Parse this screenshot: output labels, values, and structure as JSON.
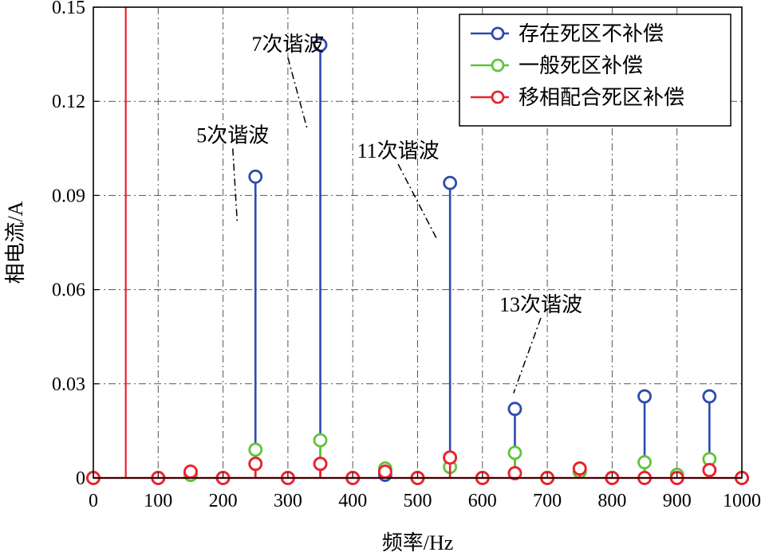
{
  "chart_data": {
    "type": "stem",
    "xlabel": "频率/Hz",
    "ylabel": "相电流/A",
    "xlim": [
      0,
      1000
    ],
    "ylim": [
      0,
      0.15
    ],
    "x_ticks": [
      0,
      100,
      200,
      300,
      400,
      500,
      600,
      700,
      800,
      900,
      1000
    ],
    "y_ticks": [
      0,
      0.03,
      0.06,
      0.09,
      0.12,
      0.15
    ],
    "y_tick_labels": [
      "0",
      "0.03",
      "0.06",
      "0.09",
      "0.12",
      "0.15"
    ],
    "grid": true,
    "grid_style": "dash-dot",
    "legend_position": "top-right",
    "series": [
      {
        "name": "存在死区不补偿",
        "color": "#2e49b0",
        "points": [
          {
            "x": 0,
            "y": 0
          },
          {
            "x": 100,
            "y": 0
          },
          {
            "x": 150,
            "y": 0.001
          },
          {
            "x": 200,
            "y": 0
          },
          {
            "x": 250,
            "y": 0.096
          },
          {
            "x": 300,
            "y": 0
          },
          {
            "x": 350,
            "y": 0.138
          },
          {
            "x": 400,
            "y": 0
          },
          {
            "x": 450,
            "y": 0.001
          },
          {
            "x": 500,
            "y": 0
          },
          {
            "x": 550,
            "y": 0.094
          },
          {
            "x": 600,
            "y": 0
          },
          {
            "x": 650,
            "y": 0.022
          },
          {
            "x": 700,
            "y": 0
          },
          {
            "x": 750,
            "y": 0.002
          },
          {
            "x": 800,
            "y": 0
          },
          {
            "x": 850,
            "y": 0.026
          },
          {
            "x": 900,
            "y": 0
          },
          {
            "x": 950,
            "y": 0.026
          },
          {
            "x": 1000,
            "y": 0
          }
        ]
      },
      {
        "name": "一般死区补偿",
        "color": "#5fc43a",
        "points": [
          {
            "x": 0,
            "y": 0
          },
          {
            "x": 100,
            "y": 0
          },
          {
            "x": 150,
            "y": 0.001
          },
          {
            "x": 200,
            "y": 0
          },
          {
            "x": 250,
            "y": 0.009
          },
          {
            "x": 300,
            "y": 0
          },
          {
            "x": 350,
            "y": 0.012
          },
          {
            "x": 400,
            "y": 0
          },
          {
            "x": 450,
            "y": 0.003
          },
          {
            "x": 500,
            "y": 0
          },
          {
            "x": 550,
            "y": 0.0035
          },
          {
            "x": 600,
            "y": 0
          },
          {
            "x": 650,
            "y": 0.008
          },
          {
            "x": 700,
            "y": 0
          },
          {
            "x": 750,
            "y": 0.002
          },
          {
            "x": 800,
            "y": 0
          },
          {
            "x": 850,
            "y": 0.005
          },
          {
            "x": 900,
            "y": 0.001
          },
          {
            "x": 950,
            "y": 0.006
          },
          {
            "x": 1000,
            "y": 0
          }
        ]
      },
      {
        "name": "移相配合死区补偿",
        "color": "#e8242c",
        "points": [
          {
            "x": 0,
            "y": 0
          },
          {
            "x": 100,
            "y": 0
          },
          {
            "x": 150,
            "y": 0.002
          },
          {
            "x": 200,
            "y": 0
          },
          {
            "x": 250,
            "y": 0.0045
          },
          {
            "x": 300,
            "y": 0
          },
          {
            "x": 350,
            "y": 0.0045
          },
          {
            "x": 400,
            "y": 0
          },
          {
            "x": 450,
            "y": 0.002
          },
          {
            "x": 500,
            "y": 0
          },
          {
            "x": 550,
            "y": 0.0065
          },
          {
            "x": 600,
            "y": 0
          },
          {
            "x": 650,
            "y": 0.0015
          },
          {
            "x": 700,
            "y": 0
          },
          {
            "x": 750,
            "y": 0.003
          },
          {
            "x": 800,
            "y": 0
          },
          {
            "x": 850,
            "y": 0
          },
          {
            "x": 900,
            "y": 0
          },
          {
            "x": 950,
            "y": 0.0025
          },
          {
            "x": 1000,
            "y": 0
          }
        ]
      }
    ],
    "fundamental_line": {
      "x": 50,
      "color": "#e8242c"
    },
    "annotations": [
      {
        "text": "5次谐波",
        "x": 215,
        "y": 0.107,
        "target": {
          "x": 222,
          "y": 0.081
        }
      },
      {
        "text": "7次谐波",
        "x": 300,
        "y": 0.136,
        "target": {
          "x": 330,
          "y": 0.111
        }
      },
      {
        "text": "11次谐波",
        "x": 470,
        "y": 0.102,
        "target": {
          "x": 530,
          "y": 0.076
        }
      },
      {
        "text": "13次谐波",
        "x": 690,
        "y": 0.053,
        "target": {
          "x": 648,
          "y": 0.027
        }
      }
    ]
  }
}
